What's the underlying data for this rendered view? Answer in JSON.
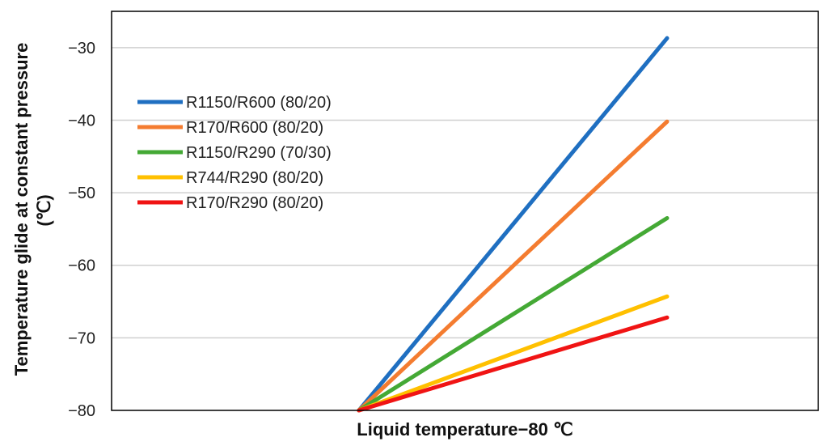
{
  "chart_data": {
    "type": "line",
    "title": "",
    "xlabel": "Liquid temperature−80 ℃",
    "ylabel_line1": "Temperature glide at constant pressure",
    "ylabel_line2": "(℃)",
    "ylim": [
      -80,
      -25
    ],
    "yticks": [
      -80,
      -70,
      -60,
      -50,
      -40,
      -30
    ],
    "ytick_labels": [
      "−80",
      "−70",
      "−60",
      "−50",
      "−40",
      "−30"
    ],
    "xlim": [
      0,
      1
    ],
    "x": [
      0.35,
      0.786
    ],
    "grid": true,
    "legend_position": "upper-left",
    "series": [
      {
        "name": "R1150/R600 (80/20)",
        "color": "#1F6FC1",
        "values": [
          -80,
          -28.7
        ]
      },
      {
        "name": "R170/R600 (80/20)",
        "color": "#F47C30",
        "values": [
          -80,
          -40.2
        ]
      },
      {
        "name": "R1150/R290 (70/30)",
        "color": "#44A935",
        "values": [
          -80,
          -53.5
        ]
      },
      {
        "name": "R744/R290 (80/20)",
        "color": "#FFC000",
        "values": [
          -80,
          -64.3
        ]
      },
      {
        "name": "R170/R290 (80/20)",
        "color": "#F01414",
        "values": [
          -80,
          -67.2
        ]
      }
    ]
  }
}
